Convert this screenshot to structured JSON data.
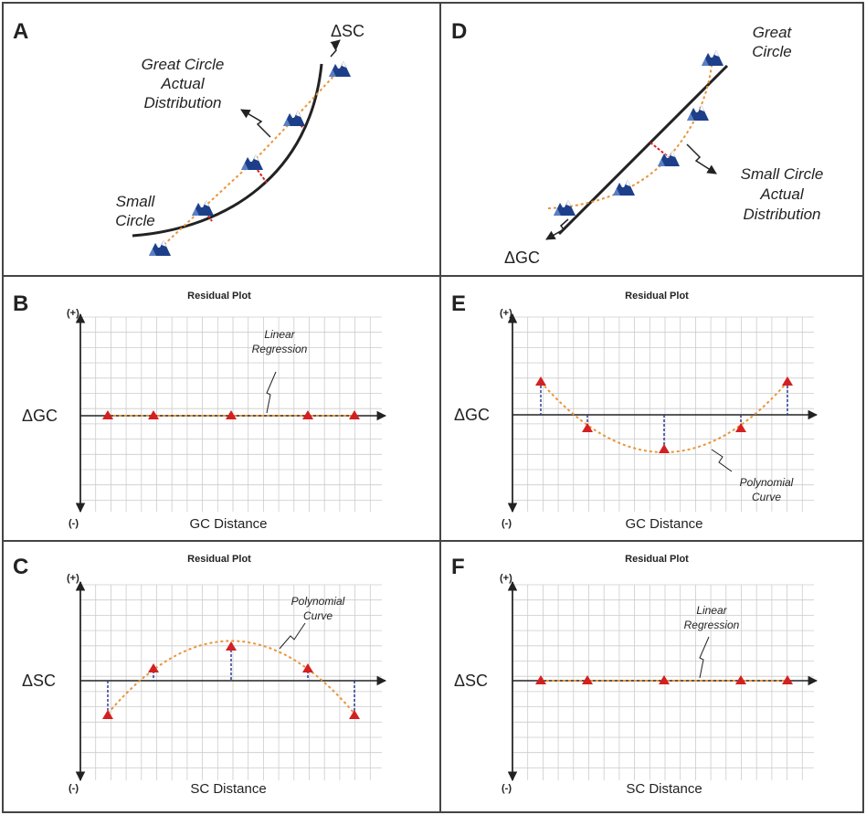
{
  "panels": {
    "A": {
      "label": "A",
      "delta_label": "ΔSC",
      "great_circle_label": [
        "Great Circle",
        "Actual",
        "Distribution"
      ],
      "small_circle_label": [
        "Small",
        "Circle"
      ]
    },
    "D": {
      "label": "D",
      "delta_label": "ΔGC",
      "great_circle_label": [
        "Great",
        "Circle"
      ],
      "small_circle_label": [
        "Small Circle",
        "Actual",
        "Distribution"
      ]
    },
    "B": {
      "label": "B",
      "title": "Residual Plot",
      "ylabel": "ΔGC",
      "xlabel": "GC Distance",
      "plus": "(+)",
      "minus": "(-)",
      "annotation": [
        "Linear",
        "Regression"
      ]
    },
    "E": {
      "label": "E",
      "title": "Residual Plot",
      "ylabel": "ΔGC",
      "xlabel": "GC Distance",
      "plus": "(+)",
      "minus": "(-)",
      "annotation": [
        "Polynomial",
        "Curve"
      ]
    },
    "C": {
      "label": "C",
      "title": "Residual Plot",
      "ylabel": "ΔSC",
      "xlabel": "SC Distance",
      "plus": "(+)",
      "minus": "(-)",
      "annotation": [
        "Polynomial",
        "Curve"
      ]
    },
    "F": {
      "label": "F",
      "title": "Residual Plot",
      "ylabel": "ΔSC",
      "xlabel": "SC Distance",
      "plus": "(+)",
      "minus": "(-)",
      "annotation": [
        "Linear",
        "Regression"
      ]
    }
  },
  "colors": {
    "border": "#444444",
    "grid": "#cccccc",
    "axis": "#222222",
    "marker": "#d42020",
    "fit": "#e8953a",
    "residual": "#2a3f9a",
    "mountain": "#1d3f8a"
  },
  "icons": {
    "marker": "red-triangle",
    "station": "mountain-icon"
  }
}
